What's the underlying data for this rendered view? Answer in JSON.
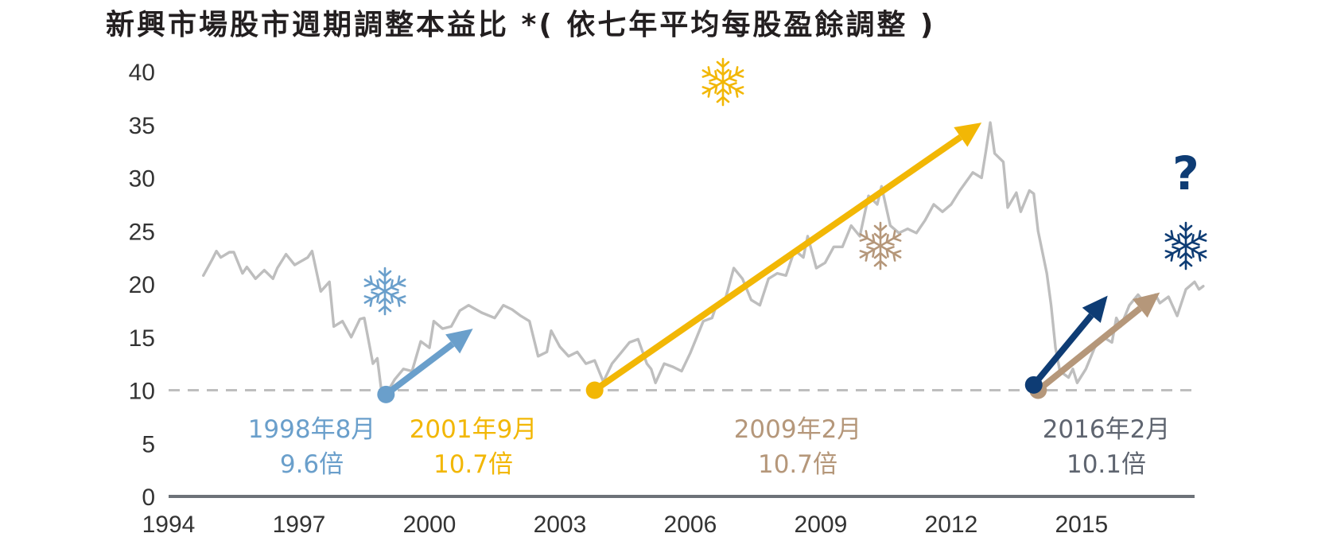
{
  "chart_data": {
    "type": "line",
    "title": "新興市場股市週期調整本益比 *( 依七年平均每股盈餘調整 )",
    "xlabel": "",
    "ylabel": "",
    "ylim": [
      0,
      40
    ],
    "xlim": [
      1994,
      2017.6
    ],
    "y_ticks": [
      "0",
      "5",
      "10",
      "15",
      "20",
      "25",
      "30",
      "35",
      "40"
    ],
    "x_ticks": [
      "1994",
      "1997",
      "2000",
      "2003",
      "2006",
      "2009",
      "2012",
      "2015"
    ],
    "grid": false,
    "reference_line": {
      "value": 10,
      "style": "dashed"
    },
    "series": [
      {
        "line_color": "#bebebe",
        "points": [
          [
            1994.8,
            20.8
          ],
          [
            1995.0,
            22.3
          ],
          [
            1995.1,
            23.1
          ],
          [
            1995.2,
            22.5
          ],
          [
            1995.4,
            23.0
          ],
          [
            1995.5,
            23.0
          ],
          [
            1995.7,
            21.0
          ],
          [
            1995.8,
            21.6
          ],
          [
            1996.0,
            20.5
          ],
          [
            1996.2,
            21.3
          ],
          [
            1996.4,
            20.5
          ],
          [
            1996.5,
            21.5
          ],
          [
            1996.7,
            22.8
          ],
          [
            1996.9,
            21.8
          ],
          [
            1997.2,
            22.5
          ],
          [
            1997.3,
            23.1
          ],
          [
            1997.5,
            19.3
          ],
          [
            1997.7,
            20.2
          ],
          [
            1997.8,
            16.0
          ],
          [
            1998.0,
            16.5
          ],
          [
            1998.2,
            15.0
          ],
          [
            1998.4,
            16.7
          ],
          [
            1998.5,
            16.8
          ],
          [
            1998.7,
            12.5
          ],
          [
            1998.8,
            13.0
          ],
          [
            1998.9,
            9.8
          ],
          [
            1999.0,
            9.6
          ],
          [
            1999.2,
            11.0
          ],
          [
            1999.4,
            12.0
          ],
          [
            1999.6,
            11.8
          ],
          [
            1999.8,
            14.6
          ],
          [
            2000.0,
            14.0
          ],
          [
            2000.1,
            16.5
          ],
          [
            2000.3,
            15.8
          ],
          [
            2000.5,
            16.0
          ],
          [
            2000.7,
            17.5
          ],
          [
            2000.9,
            18.0
          ],
          [
            2001.2,
            17.3
          ],
          [
            2001.5,
            16.8
          ],
          [
            2001.7,
            18.0
          ],
          [
            2001.9,
            17.6
          ],
          [
            2002.1,
            17.0
          ],
          [
            2002.3,
            16.5
          ],
          [
            2002.5,
            13.2
          ],
          [
            2002.7,
            13.6
          ],
          [
            2002.8,
            15.6
          ],
          [
            2003.0,
            14.1
          ],
          [
            2003.2,
            13.2
          ],
          [
            2003.4,
            13.6
          ],
          [
            2003.6,
            12.5
          ],
          [
            2003.8,
            12.8
          ],
          [
            2004.0,
            10.8
          ],
          [
            2004.2,
            12.5
          ],
          [
            2004.4,
            13.5
          ],
          [
            2004.6,
            14.5
          ],
          [
            2004.8,
            14.8
          ],
          [
            2005.0,
            12.5
          ],
          [
            2005.1,
            12.0
          ],
          [
            2005.2,
            10.7
          ],
          [
            2005.4,
            12.5
          ],
          [
            2005.6,
            12.2
          ],
          [
            2005.8,
            11.8
          ],
          [
            2006.0,
            13.5
          ],
          [
            2006.3,
            16.5
          ],
          [
            2006.5,
            16.8
          ],
          [
            2006.6,
            18.0
          ],
          [
            2006.8,
            18.5
          ],
          [
            2007.0,
            21.5
          ],
          [
            2007.2,
            20.5
          ],
          [
            2007.4,
            18.5
          ],
          [
            2007.6,
            18.0
          ],
          [
            2007.8,
            20.5
          ],
          [
            2008.0,
            21.0
          ],
          [
            2008.2,
            20.8
          ],
          [
            2008.4,
            23.2
          ],
          [
            2008.6,
            22.5
          ],
          [
            2008.7,
            24.5
          ],
          [
            2008.9,
            21.5
          ],
          [
            2009.1,
            22.0
          ],
          [
            2009.3,
            23.5
          ],
          [
            2009.5,
            23.5
          ],
          [
            2009.7,
            25.5
          ],
          [
            2009.9,
            24.5
          ],
          [
            2010.1,
            28.3
          ],
          [
            2010.3,
            27.5
          ],
          [
            2010.4,
            29.2
          ],
          [
            2010.6,
            25.5
          ],
          [
            2010.8,
            24.8
          ],
          [
            2011.0,
            25.2
          ],
          [
            2011.2,
            24.8
          ],
          [
            2011.4,
            26.0
          ],
          [
            2011.6,
            27.5
          ],
          [
            2011.8,
            26.8
          ],
          [
            2012.0,
            27.5
          ],
          [
            2012.2,
            28.8
          ],
          [
            2012.5,
            30.5
          ],
          [
            2012.7,
            30.0
          ],
          [
            2012.8,
            32.5
          ],
          [
            2012.9,
            35.2
          ],
          [
            2013.0,
            32.3
          ],
          [
            2013.2,
            31.5
          ],
          [
            2013.3,
            27.2
          ],
          [
            2013.5,
            28.6
          ],
          [
            2013.6,
            26.8
          ],
          [
            2013.8,
            28.8
          ],
          [
            2013.9,
            28.5
          ],
          [
            2014.0,
            25.0
          ],
          [
            2014.2,
            21.0
          ],
          [
            2014.3,
            18.0
          ],
          [
            2014.4,
            14.0
          ],
          [
            2014.5,
            11.8
          ],
          [
            2014.7,
            11.2
          ],
          [
            2014.8,
            12.0
          ],
          [
            2014.9,
            10.7
          ],
          [
            2015.1,
            12.0
          ],
          [
            2015.3,
            14.0
          ],
          [
            2015.5,
            15.0
          ],
          [
            2015.7,
            14.5
          ],
          [
            2015.8,
            16.8
          ],
          [
            2015.9,
            16.0
          ],
          [
            2016.1,
            18.0
          ],
          [
            2016.3,
            19.0
          ],
          [
            2016.5,
            18.0
          ],
          [
            2016.7,
            19.0
          ],
          [
            2016.8,
            18.2
          ],
          [
            2017.0,
            18.8
          ],
          [
            2017.2,
            17.0
          ],
          [
            2017.4,
            19.5
          ],
          [
            2017.6,
            20.2
          ],
          [
            2017.7,
            19.5
          ],
          [
            2017.8,
            19.8
          ]
        ]
      }
    ],
    "arrows": [
      {
        "from": [
          1999.0,
          9.6
        ],
        "to": [
          2001.0,
          15.8
        ],
        "color": "#6a9fcb"
      },
      {
        "from": [
          2003.8,
          10.0
        ],
        "to": [
          2012.7,
          35.2
        ],
        "color": "#f2b705"
      },
      {
        "from": [
          2014.0,
          10.0
        ],
        "to": [
          2016.8,
          19.2
        ],
        "color": "#b5977a"
      },
      {
        "from": [
          2013.9,
          10.5
        ],
        "to": [
          2015.6,
          18.9
        ],
        "color": "#0e3c74"
      }
    ],
    "annotations": [
      {
        "line1": "1998年8月",
        "line2": "9.6倍",
        "color": "#6a9fcb",
        "x": 1998.9
      },
      {
        "line1": "2001年9月",
        "line2": "10.7倍",
        "color": "#f2b705",
        "x": 2003.9
      },
      {
        "line1": "2009年2月",
        "line2": "10.7倍",
        "color": "#b5977a",
        "x": 2015.0
      },
      {
        "line1": "2016年2月",
        "line2": "10.1倍",
        "color": "#5f6570",
        "x": 2014.7
      }
    ],
    "markers": [
      {
        "type": "snowflake",
        "color": "#6a9fcb",
        "at": [
          2000.3,
          19.0
        ]
      },
      {
        "type": "snowflake",
        "color": "#f2b705",
        "at": [
          2012.8,
          39.0
        ]
      },
      {
        "type": "snowflake",
        "color": "#b5977a",
        "at": [
          2016.8,
          23.5
        ]
      },
      {
        "type": "snowflake",
        "color": "#0e3c74",
        "at": [
          2015.2,
          23.5
        ]
      },
      {
        "type": "question",
        "color": "#0e3c74",
        "text": "?"
      }
    ]
  }
}
